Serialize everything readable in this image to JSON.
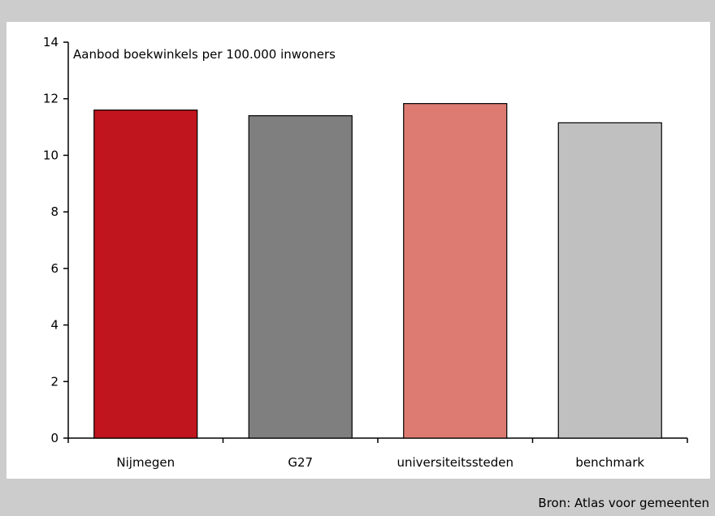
{
  "chart_data": {
    "type": "bar",
    "title": "Aanbod boekwinkels per 100.000 inwoners",
    "categories": [
      "Nijmegen",
      "G27",
      "universiteitssteden",
      "benchmark"
    ],
    "values": [
      11.6,
      11.4,
      11.83,
      11.15
    ],
    "colors": [
      "#c0141e",
      "#7f7f7f",
      "#dd7b72",
      "#c0c0c0"
    ],
    "ylim": [
      0,
      14
    ],
    "yticks": [
      "0",
      "2",
      "4",
      "6",
      "8",
      "10",
      "12",
      "14"
    ],
    "grid": false,
    "legend": "none"
  },
  "footer": {
    "source": "Bron: Atlas voor gemeenten"
  }
}
